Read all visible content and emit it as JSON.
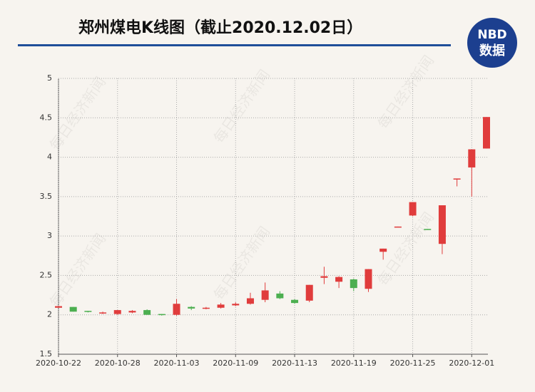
{
  "logo": {
    "brand": "NBD",
    "text": "数据"
  },
  "watermark": "每日经济新闻",
  "chart_data": {
    "type": "candlestick",
    "title": "郑州煤电K线图（截止2020.12.02日）",
    "categories": [
      "2020-10-22",
      null,
      null,
      null,
      "2020-10-28",
      null,
      null,
      null,
      "2020-11-03",
      null,
      null,
      null,
      "2020-11-09",
      null,
      null,
      null,
      "2020-11-13",
      null,
      null,
      null,
      "2020-11-19",
      null,
      null,
      null,
      "2020-11-25",
      null,
      null,
      null,
      "2020-12-01",
      null
    ],
    "open": [
      2.09,
      2.1,
      2.05,
      2.02,
      2.01,
      2.03,
      2.06,
      2.01,
      2.0,
      2.1,
      2.08,
      2.09,
      2.12,
      2.14,
      2.19,
      2.27,
      2.19,
      2.18,
      2.47,
      2.42,
      2.45,
      2.33,
      2.8,
      3.11,
      3.26,
      3.09,
      2.9,
      3.72,
      3.87,
      4.11
    ],
    "high": [
      2.11,
      2.1,
      2.05,
      2.04,
      2.06,
      2.06,
      2.07,
      2.01,
      2.2,
      2.11,
      2.1,
      2.15,
      2.16,
      2.28,
      2.41,
      2.3,
      2.2,
      2.38,
      2.61,
      2.49,
      2.46,
      2.58,
      2.84,
      3.12,
      3.43,
      3.09,
      3.39,
      3.73,
      4.1,
      4.51
    ],
    "low": [
      2.09,
      2.04,
      2.03,
      2.01,
      2.0,
      2.02,
      2.0,
      1.99,
      1.99,
      2.06,
      2.07,
      2.08,
      2.11,
      2.13,
      2.16,
      2.2,
      2.14,
      2.16,
      2.39,
      2.34,
      2.3,
      2.29,
      2.7,
      3.11,
      3.25,
      3.08,
      2.77,
      3.63,
      3.5,
      4.11
    ],
    "close": [
      2.11,
      2.04,
      2.04,
      2.03,
      2.06,
      2.05,
      2.0,
      2.0,
      2.14,
      2.08,
      2.09,
      2.13,
      2.14,
      2.21,
      2.31,
      2.21,
      2.15,
      2.38,
      2.49,
      2.48,
      2.34,
      2.58,
      2.84,
      3.12,
      3.43,
      3.08,
      3.39,
      3.73,
      4.1,
      4.51
    ],
    "up_color": "#e03c3c",
    "down_color": "#4caf50",
    "ylim": [
      1.5,
      5
    ],
    "yticks": [
      1.5,
      2,
      2.5,
      3,
      3.5,
      4,
      4.5,
      5
    ],
    "grid": true
  }
}
